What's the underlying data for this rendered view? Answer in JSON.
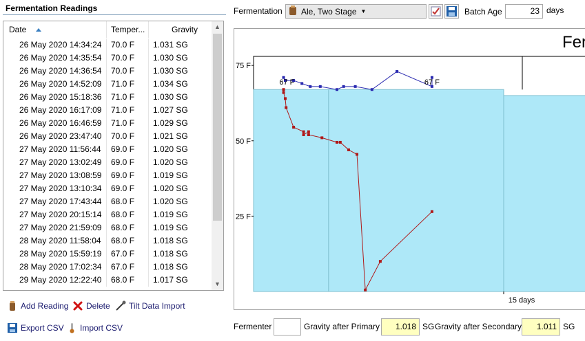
{
  "panel": {
    "title": "Fermentation Readings"
  },
  "list": {
    "headers": {
      "date": "Date",
      "temp": "Temper...",
      "gravity": "Gravity"
    },
    "rows": [
      {
        "date": "26 May 2020 14:34:24",
        "temp": "70.0 F",
        "gravity": "1.031 SG"
      },
      {
        "date": "26 May 2020 14:35:54",
        "temp": "70.0 F",
        "gravity": "1.030 SG"
      },
      {
        "date": "26 May 2020 14:36:54",
        "temp": "70.0 F",
        "gravity": "1.030 SG"
      },
      {
        "date": "26 May 2020 14:52:09",
        "temp": "71.0 F",
        "gravity": "1.034 SG"
      },
      {
        "date": "26 May 2020 15:18:36",
        "temp": "71.0 F",
        "gravity": "1.030 SG"
      },
      {
        "date": "26 May 2020 16:17:09",
        "temp": "71.0 F",
        "gravity": "1.027 SG"
      },
      {
        "date": "26 May 2020 16:46:59",
        "temp": "71.0 F",
        "gravity": "1.029 SG"
      },
      {
        "date": "26 May 2020 23:47:40",
        "temp": "70.0 F",
        "gravity": "1.021 SG"
      },
      {
        "date": "27 May 2020 11:56:44",
        "temp": "69.0 F",
        "gravity": "1.020 SG"
      },
      {
        "date": "27 May 2020 13:02:49",
        "temp": "69.0 F",
        "gravity": "1.020 SG"
      },
      {
        "date": "27 May 2020 13:08:59",
        "temp": "69.0 F",
        "gravity": "1.019 SG"
      },
      {
        "date": "27 May 2020 13:10:34",
        "temp": "69.0 F",
        "gravity": "1.020 SG"
      },
      {
        "date": "27 May 2020 17:43:44",
        "temp": "68.0 F",
        "gravity": "1.020 SG"
      },
      {
        "date": "27 May 2020 20:15:14",
        "temp": "68.0 F",
        "gravity": "1.019 SG"
      },
      {
        "date": "27 May 2020 21:59:09",
        "temp": "68.0 F",
        "gravity": "1.019 SG"
      },
      {
        "date": "28 May 2020 11:58:04",
        "temp": "68.0 F",
        "gravity": "1.018 SG"
      },
      {
        "date": "28 May 2020 15:59:19",
        "temp": "67.0 F",
        "gravity": "1.018 SG"
      },
      {
        "date": "28 May 2020 17:02:34",
        "temp": "67.0 F",
        "gravity": "1.018 SG"
      },
      {
        "date": "29 May 2020 12:22:40",
        "temp": "68.0 F",
        "gravity": "1.017 SG"
      }
    ]
  },
  "actions": {
    "add_reading": "Add Reading",
    "delete": "Delete",
    "tilt_import": "Tilt Data Import",
    "export_csv": "Export CSV",
    "import_csv": "Import CSV"
  },
  "toolbar": {
    "fermentation_label": "Fermentation",
    "fermentation_value": "Ale, Two Stage",
    "batch_age_label": "Batch Age",
    "batch_age_value": "23",
    "batch_age_unit": "days"
  },
  "footer": {
    "fermenter_label": "Fermenter",
    "fermenter_value": "",
    "gravity_primary_label": "Gravity after Primary",
    "gravity_primary_value": "1.018",
    "gravity_primary_unit": "SG",
    "gravity_secondary_label": "Gravity after Secondary",
    "gravity_secondary_value": "1.011",
    "gravity_secondary_unit": "SG"
  },
  "colors": {
    "temp_line": "#2a2ab0",
    "gravity_line": "#b01818",
    "stage_fill": "#aee8f8",
    "stage_edge": "#7fbfcf"
  },
  "chart_data": {
    "type": "line",
    "title": "Fer",
    "y_ticks": [
      "75 F",
      "50 F",
      "25 F"
    ],
    "y_tick_values": [
      75,
      50,
      25
    ],
    "ylim": [
      0,
      78
    ],
    "x_ticks": [
      "15 days"
    ],
    "x_tick_values": [
      15
    ],
    "xlim": [
      0,
      20
    ],
    "annotations": [
      {
        "text": "67 F",
        "x": 2.0,
        "y": 67
      },
      {
        "text": "67 F",
        "x": 10.7,
        "y": 67
      }
    ],
    "stages": [
      {
        "x0": 0,
        "x1": 4.5,
        "y": 67
      },
      {
        "x0": 4.5,
        "x1": 15.0,
        "y": 67
      },
      {
        "x0": 15.0,
        "x1": 20.5,
        "y": 65
      }
    ],
    "series": [
      {
        "name": "Temperature",
        "x": [
          1.8,
          1.9,
          2.4,
          2.9,
          3.4,
          4.0,
          5.0,
          5.4,
          6.1,
          7.1,
          8.6,
          10.7,
          10.7
        ],
        "y": [
          71,
          70,
          70,
          69,
          68,
          68,
          67,
          68,
          68,
          67,
          73,
          68,
          71
        ]
      },
      {
        "name": "Gravity",
        "x": [
          1.8,
          1.8,
          1.9,
          1.95,
          2.4,
          3.0,
          3.0,
          3.3,
          3.3,
          4.1,
          5.0,
          5.2,
          5.7,
          6.2,
          6.7,
          7.6,
          10.7
        ],
        "y": [
          67,
          66,
          64,
          61,
          54.5,
          53,
          52,
          53,
          52,
          51,
          49.5,
          49.5,
          47,
          45.5,
          0.5,
          10,
          26.5
        ]
      }
    ]
  }
}
